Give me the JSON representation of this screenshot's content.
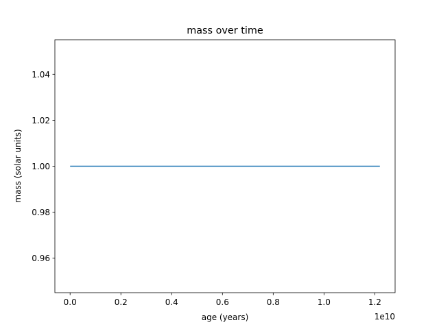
{
  "chart_data": {
    "type": "line",
    "title": "mass over time",
    "xlabel": "age (years)",
    "ylabel": "mass (solar units)",
    "x_offset_label": "1e10",
    "x_multiplier": 10000000000,
    "xlim": [
      -0.06,
      1.28
    ],
    "ylim": [
      0.945,
      1.055
    ],
    "x_ticks": [
      0.0,
      0.2,
      0.4,
      0.6,
      0.8,
      1.0,
      1.2
    ],
    "x_tick_labels": [
      "0.0",
      "0.2",
      "0.4",
      "0.6",
      "0.8",
      "1.0",
      "1.2"
    ],
    "y_ticks": [
      0.96,
      0.98,
      1.0,
      1.02,
      1.04
    ],
    "y_tick_labels": [
      "0.96",
      "0.98",
      "1.00",
      "1.02",
      "1.04"
    ],
    "grid": false,
    "series": [
      {
        "color": "#1f77b4",
        "x": [
          0.0,
          1.22
        ],
        "y": [
          1.0,
          1.0
        ]
      }
    ]
  }
}
